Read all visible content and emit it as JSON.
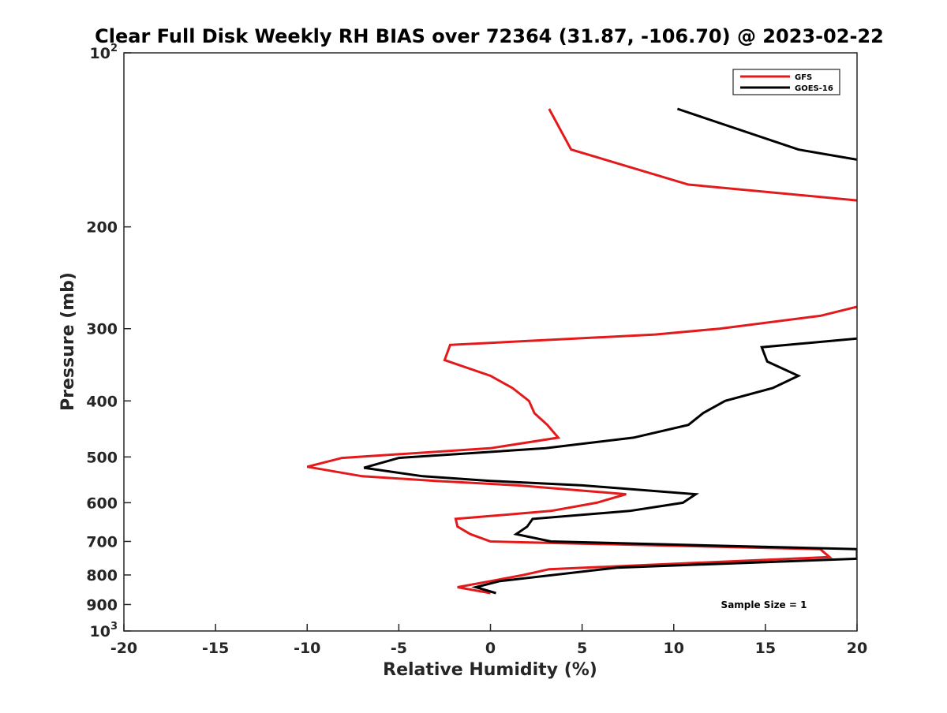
{
  "chart_data": {
    "type": "line",
    "title": "Clear Full Disk Weekly RH BIAS over 72364 (31.87, -106.70) @ 2023-02-22",
    "xlabel": "Relative Humidity (%)",
    "ylabel": "Pressure (mb)",
    "xlim": [
      -20,
      20
    ],
    "ylim": [
      100,
      1000
    ],
    "y_scale": "log",
    "y_reversed": true,
    "x_ticks": [
      -20,
      -15,
      -10,
      -5,
      0,
      5,
      10,
      15,
      20
    ],
    "x_tick_labels": [
      "-20",
      "-15",
      "-10",
      "-5",
      "0",
      "5",
      "10",
      "15",
      "20"
    ],
    "y_ticks": [
      {
        "value": 100,
        "base": "10",
        "exp": "2"
      },
      {
        "value": 200,
        "base": "200",
        "exp": ""
      },
      {
        "value": 300,
        "base": "300",
        "exp": ""
      },
      {
        "value": 400,
        "base": "400",
        "exp": ""
      },
      {
        "value": 500,
        "base": "500",
        "exp": ""
      },
      {
        "value": 600,
        "base": "600",
        "exp": ""
      },
      {
        "value": 700,
        "base": "700",
        "exp": ""
      },
      {
        "value": 800,
        "base": "800",
        "exp": ""
      },
      {
        "value": 900,
        "base": "900",
        "exp": ""
      },
      {
        "value": 1000,
        "base": "10",
        "exp": "3"
      }
    ],
    "grid": false,
    "legend_position": "top-right",
    "series": [
      {
        "name": "GFS",
        "color": "#e31a1c",
        "segments": [
          [
            {
              "x": 3.2,
              "y": 125
            },
            {
              "x": 4.4,
              "y": 147
            },
            {
              "x": 10.8,
              "y": 169
            },
            {
              "x": 20.0,
              "y": 180
            }
          ],
          [
            {
              "x": 20.0,
              "y": 275
            },
            {
              "x": 18.0,
              "y": 285
            },
            {
              "x": 12.5,
              "y": 300
            },
            {
              "x": 9.0,
              "y": 307
            },
            {
              "x": -2.2,
              "y": 320
            },
            {
              "x": -2.5,
              "y": 340
            },
            {
              "x": 0.0,
              "y": 362
            },
            {
              "x": 1.2,
              "y": 380
            },
            {
              "x": 2.1,
              "y": 400
            },
            {
              "x": 2.4,
              "y": 420
            },
            {
              "x": 3.1,
              "y": 440
            },
            {
              "x": 3.7,
              "y": 463
            },
            {
              "x": 0.0,
              "y": 483
            },
            {
              "x": -8.1,
              "y": 502
            },
            {
              "x": -10.0,
              "y": 520
            },
            {
              "x": -7.0,
              "y": 540
            },
            {
              "x": -3.0,
              "y": 550
            },
            {
              "x": 1.5,
              "y": 560
            },
            {
              "x": 7.4,
              "y": 580
            },
            {
              "x": 5.8,
              "y": 600
            },
            {
              "x": 3.3,
              "y": 620
            },
            {
              "x": -1.9,
              "y": 640
            },
            {
              "x": -1.8,
              "y": 660
            },
            {
              "x": -1.1,
              "y": 680
            },
            {
              "x": 0.0,
              "y": 700
            },
            {
              "x": 18.0,
              "y": 722
            },
            {
              "x": 18.5,
              "y": 745
            },
            {
              "x": 3.2,
              "y": 782
            },
            {
              "x": 1.8,
              "y": 800
            },
            {
              "x": 0.0,
              "y": 820
            },
            {
              "x": -1.8,
              "y": 840
            },
            {
              "x": 0.0,
              "y": 860
            }
          ]
        ]
      },
      {
        "name": "GOES-16",
        "color": "#000000",
        "segments": [
          [
            {
              "x": 10.2,
              "y": 125
            },
            {
              "x": 16.8,
              "y": 147
            },
            {
              "x": 20.0,
              "y": 153
            }
          ],
          [
            {
              "x": 20.0,
              "y": 312
            },
            {
              "x": 14.8,
              "y": 323
            },
            {
              "x": 15.1,
              "y": 342
            },
            {
              "x": 16.8,
              "y": 362
            },
            {
              "x": 15.4,
              "y": 380
            },
            {
              "x": 12.8,
              "y": 400
            },
            {
              "x": 11.6,
              "y": 420
            },
            {
              "x": 10.8,
              "y": 440
            },
            {
              "x": 7.8,
              "y": 463
            },
            {
              "x": 3.0,
              "y": 483
            },
            {
              "x": -5.0,
              "y": 502
            },
            {
              "x": -6.9,
              "y": 522
            },
            {
              "x": -3.7,
              "y": 540
            },
            {
              "x": 0.0,
              "y": 550
            },
            {
              "x": 5.0,
              "y": 560
            },
            {
              "x": 11.2,
              "y": 580
            },
            {
              "x": 10.5,
              "y": 600
            },
            {
              "x": 7.6,
              "y": 620
            },
            {
              "x": 2.3,
              "y": 640
            },
            {
              "x": 2.0,
              "y": 660
            },
            {
              "x": 1.4,
              "y": 680
            },
            {
              "x": 3.3,
              "y": 700
            },
            {
              "x": 20.0,
              "y": 722
            },
            {
              "x": 20.0,
              "y": 750
            },
            {
              "x": 6.9,
              "y": 777
            },
            {
              "x": 0.5,
              "y": 820
            },
            {
              "x": -0.8,
              "y": 840
            },
            {
              "x": 0.3,
              "y": 860
            }
          ]
        ]
      }
    ],
    "annotations": [
      {
        "id": "sample-size",
        "text": "Sample Size = 1"
      }
    ]
  }
}
